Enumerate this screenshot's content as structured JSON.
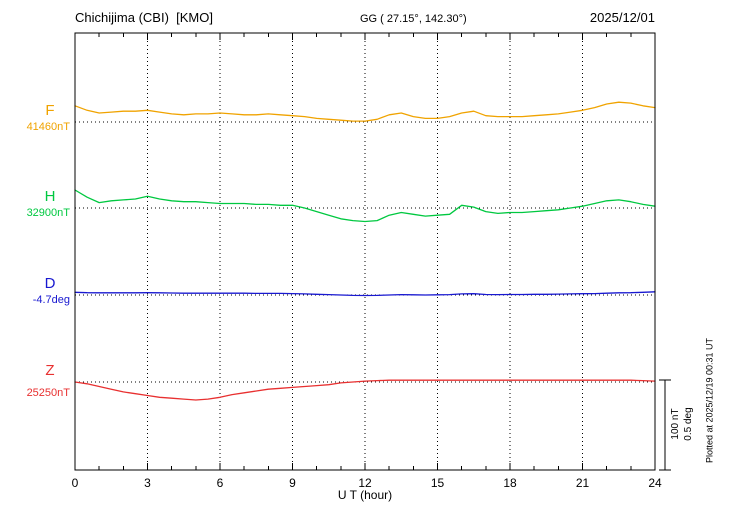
{
  "header": {
    "station": "Chichijima (CBI)  [KMO]",
    "coords": "GG ( 27.15°, 142.30°)",
    "date": "2025/12/01"
  },
  "chart_data": {
    "type": "line",
    "title": "Chichijima (CBI) [KMO] magnetogram 2025/12/01",
    "xlabel": "U T (hour)",
    "x_range": [
      0,
      24
    ],
    "x_step_hours": 0.5,
    "x_ticks": [
      0,
      3,
      6,
      9,
      12,
      15,
      18,
      21,
      24
    ],
    "grid": "dotted vertical lines every 3 hours; dotted horizontal baseline per trace",
    "scale_bar": {
      "labels": [
        "100 nT",
        "0.5 deg"
      ],
      "nT_per_div": 100,
      "deg_per_div": 0.5
    },
    "plotted_at": "Plotted at 2025/12/19 00:31 UT",
    "series": [
      {
        "name": "F",
        "unit": "nT",
        "baseline_value": 41460,
        "baseline_label": "41460nT",
        "color": "#f0a300",
        "values": [
          18,
          13,
          10,
          11,
          12,
          12,
          13,
          11,
          9,
          8,
          9,
          9,
          10,
          9,
          8,
          8,
          9,
          8,
          7,
          6,
          4,
          3,
          2,
          1,
          1,
          3,
          8,
          10,
          6,
          4,
          4,
          6,
          10,
          12,
          7,
          6,
          6,
          6,
          7,
          8,
          9,
          11,
          13,
          16,
          20,
          22,
          21,
          18,
          16
        ]
      },
      {
        "name": "H",
        "unit": "nT",
        "baseline_value": 32900,
        "baseline_label": "32900nT",
        "color": "#00c840",
        "values": [
          20,
          12,
          6,
          8,
          9,
          10,
          13,
          10,
          8,
          7,
          7,
          6,
          5,
          5,
          5,
          4,
          4,
          3,
          3,
          0,
          -4,
          -8,
          -12,
          -14,
          -15,
          -14,
          -8,
          -5,
          -7,
          -9,
          -8,
          -7,
          3,
          1,
          -4,
          -6,
          -5,
          -5,
          -4,
          -3,
          -2,
          0,
          2,
          5,
          8,
          9,
          7,
          4,
          2
        ]
      },
      {
        "name": "D",
        "unit": "deg",
        "baseline_value": -4.7,
        "baseline_label": "-4.7deg",
        "color": "#1818d0",
        "values": [
          0.015,
          0.013,
          0.012,
          0.012,
          0.012,
          0.012,
          0.013,
          0.012,
          0.011,
          0.01,
          0.01,
          0.01,
          0.01,
          0.01,
          0.01,
          0.009,
          0.009,
          0.009,
          0.008,
          0.006,
          0.004,
          0.002,
          0.0,
          -0.002,
          -0.003,
          -0.002,
          0.0,
          0.002,
          0.001,
          0.0,
          0.001,
          0.002,
          0.006,
          0.007,
          0.003,
          0.002,
          0.003,
          0.003,
          0.004,
          0.004,
          0.005,
          0.006,
          0.007,
          0.008,
          0.01,
          0.012,
          0.013,
          0.015,
          0.018
        ]
      },
      {
        "name": "Z",
        "unit": "nT",
        "baseline_value": 25250,
        "baseline_label": "25250nT",
        "color": "#e83030",
        "values": [
          0,
          -2,
          -5,
          -8,
          -11,
          -13,
          -15,
          -17,
          -18,
          -19,
          -20,
          -19,
          -17,
          -14,
          -12,
          -10,
          -8,
          -7,
          -6,
          -5,
          -4,
          -3,
          -1,
          0,
          1,
          1.5,
          2,
          2,
          2,
          2,
          2,
          2,
          2,
          2,
          2,
          2,
          2,
          2,
          2,
          2,
          2,
          2,
          2,
          2,
          2,
          2,
          2,
          1.5,
          1
        ]
      }
    ]
  }
}
